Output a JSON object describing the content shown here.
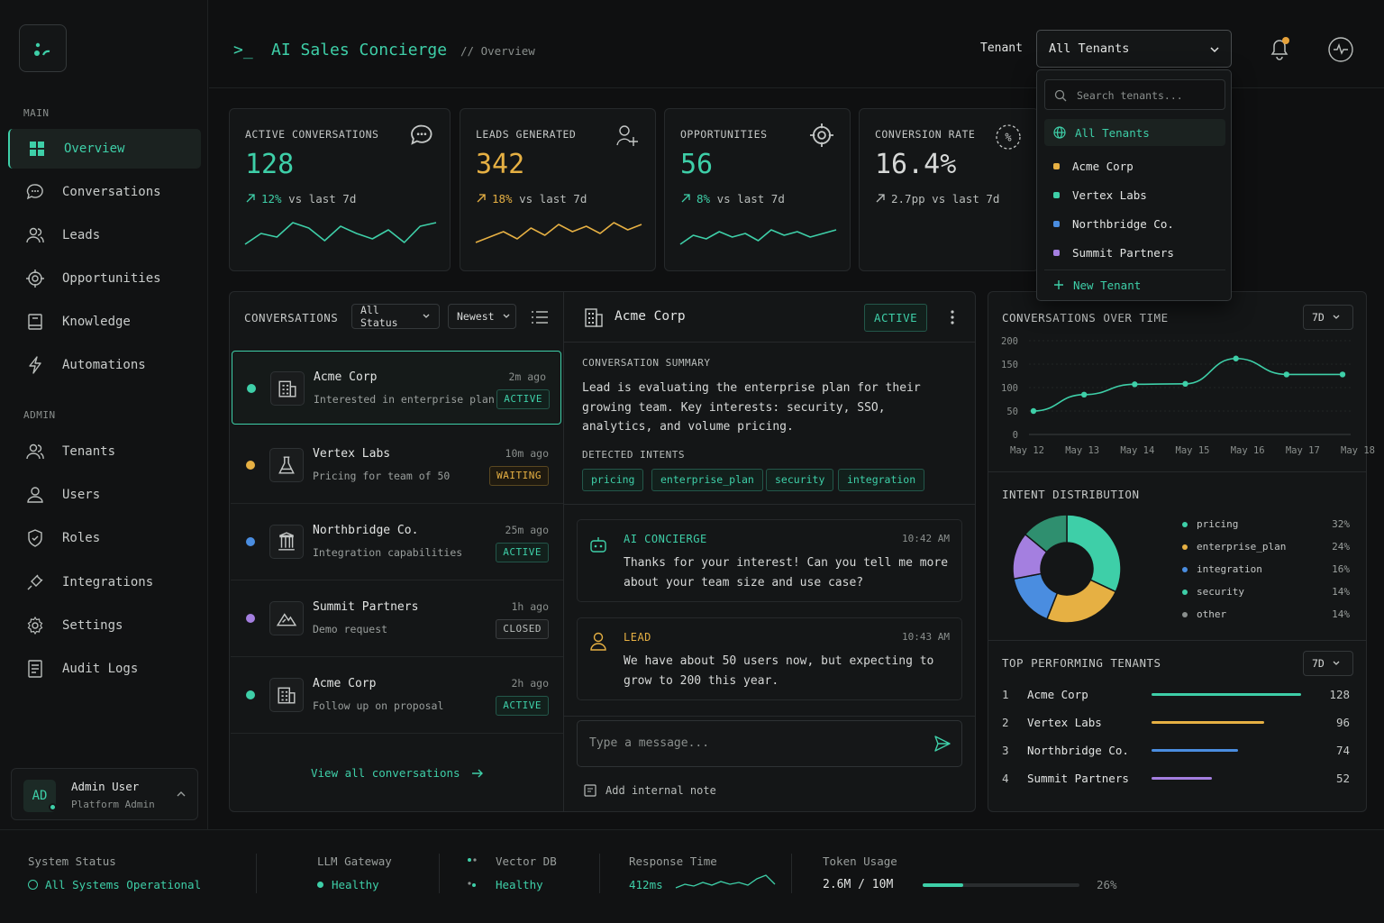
{
  "app": {
    "title": "AI Sales Concierge",
    "prompt": ">_",
    "breadcrumb": "// Overview"
  },
  "sidebar": {
    "main_label": "MAIN",
    "admin_label": "ADMIN",
    "main_items": [
      {
        "label": "Overview",
        "icon": "grid-icon",
        "active": true
      },
      {
        "label": "Conversations",
        "icon": "chat-icon"
      },
      {
        "label": "Leads",
        "icon": "users-icon"
      },
      {
        "label": "Opportunities",
        "icon": "target-icon"
      },
      {
        "label": "Knowledge",
        "icon": "book-icon"
      },
      {
        "label": "Automations",
        "icon": "bolt-icon"
      }
    ],
    "admin_items": [
      {
        "label": "Tenants",
        "icon": "users-icon"
      },
      {
        "label": "Users",
        "icon": "user-icon"
      },
      {
        "label": "Roles",
        "icon": "shield-icon"
      },
      {
        "label": "Integrations",
        "icon": "plug-icon"
      },
      {
        "label": "Settings",
        "icon": "gear-icon"
      },
      {
        "label": "Audit Logs",
        "icon": "document-icon"
      }
    ],
    "user": {
      "initials": "AD",
      "name": "Admin User",
      "role": "Platform Admin"
    }
  },
  "header": {
    "tenant_label": "Tenant",
    "tenant_selected": "All Tenants",
    "tenant_menu": {
      "search_placeholder": "Search tenants...",
      "items": [
        {
          "label": "All Tenants",
          "color": "#3ecfa8",
          "selected": true
        },
        {
          "label": "Acme Corp",
          "color": "#e6b043"
        },
        {
          "label": "Vertex Labs",
          "color": "#3ecfa8"
        },
        {
          "label": "Northbridge Co.",
          "color": "#4a8de0"
        },
        {
          "label": "Summit Partners",
          "color": "#a47fe0"
        }
      ],
      "new_label": "New Tenant"
    }
  },
  "kpis": [
    {
      "title": "ACTIVE CONVERSATIONS",
      "value": "128",
      "delta": "12%",
      "delta_suffix": " vs last 7d",
      "color": "#3ecfa8"
    },
    {
      "title": "LEADS GENERATED",
      "value": "342",
      "delta": "18%",
      "delta_suffix": " vs last 7d",
      "color": "#e6b043"
    },
    {
      "title": "OPPORTUNITIES",
      "value": "56",
      "delta": "8%",
      "delta_suffix": " vs last 7d",
      "color": "#3ecfa8"
    },
    {
      "title": "CONVERSION RATE",
      "value": "16.4%",
      "delta": "2.7pp",
      "delta_suffix": " vs last 7d",
      "color": "#d6d8d7"
    }
  ],
  "conversations": {
    "title": "CONVERSATIONS",
    "filter_status": "All Status",
    "filter_sort": "Newest",
    "items": [
      {
        "name": "Acme Corp",
        "sub": "Interested in enterprise plan",
        "time": "2m ago",
        "status": "ACTIVE",
        "dot": "#3ecfa8",
        "icon": "building-icon"
      },
      {
        "name": "Vertex Labs",
        "sub": "Pricing for team of 50",
        "time": "10m ago",
        "status": "WAITING",
        "dot": "#e6b043",
        "icon": "flask-icon"
      },
      {
        "name": "Northbridge Co.",
        "sub": "Integration capabilities",
        "time": "25m ago",
        "status": "ACTIVE",
        "dot": "#4a8de0",
        "icon": "columns-icon"
      },
      {
        "name": "Summit Partners",
        "sub": "Demo request",
        "time": "1h ago",
        "status": "CLOSED",
        "dot": "#a47fe0",
        "icon": "mountain-icon"
      },
      {
        "name": "Acme Corp",
        "sub": "Follow up on proposal",
        "time": "2h ago",
        "status": "ACTIVE",
        "dot": "#3ecfa8",
        "icon": "building-icon"
      }
    ],
    "view_all": "View all conversations"
  },
  "detail": {
    "company": "Acme Corp",
    "status": "ACTIVE",
    "summary_label": "CONVERSATION SUMMARY",
    "summary_lines": [
      "Lead is evaluating the enterprise plan for their",
      "growing team. Key interests: security, SSO,",
      "analytics, and volume pricing."
    ],
    "intents_label": "DETECTED INTENTS",
    "intents": [
      "pricing",
      "enterprise_plan",
      "security",
      "integration"
    ],
    "messages": [
      {
        "author": "AI CONCIERGE",
        "time": "10:42 AM",
        "lines": [
          "Thanks for your interest! Can you tell me more",
          "about your team size and use case?"
        ]
      },
      {
        "author": "LEAD",
        "time": "10:43 AM",
        "lines": [
          "We have about 50 users now, but expecting to",
          "grow to 200 this year."
        ]
      }
    ],
    "input_placeholder": "Type a message...",
    "note_label": "Add internal note"
  },
  "over_time": {
    "title": "CONVERSATIONS OVER TIME",
    "range": "7D"
  },
  "chart_data": [
    {
      "type": "line",
      "title": "CONVERSATIONS OVER TIME",
      "x": [
        "May 12",
        "May 13",
        "May 14",
        "May 15",
        "May 16",
        "May 17",
        "May 18"
      ],
      "series": [
        {
          "values": [
            50,
            85,
            107,
            108,
            162,
            128,
            128
          ]
        }
      ],
      "yticks": [
        0,
        50,
        100,
        150,
        200
      ],
      "ylim": [
        0,
        200
      ],
      "grid": true,
      "color": "#3ecfa8"
    },
    {
      "type": "pie",
      "title": "INTENT DISTRIBUTION",
      "categories": [
        "pricing",
        "enterprise_plan",
        "integration",
        "security",
        "other"
      ],
      "values": [
        32,
        24,
        16,
        14,
        14
      ],
      "labels": [
        "32%",
        "24%",
        "16%",
        "14%",
        "14%"
      ],
      "colors": [
        "#3ecfa8",
        "#e6b043",
        "#4a8de0",
        "#2f8f6f",
        "#a47fe0"
      ],
      "legend_colors": [
        "#3ecfa8",
        "#e6b043",
        "#4a8de0",
        "#3ecfa8",
        "#8a8f8d"
      ]
    },
    {
      "type": "bar",
      "title": "TOP PERFORMING TENANTS",
      "categories": [
        "Acme Corp",
        "Vertex Labs",
        "Northbridge Co.",
        "Summit Partners"
      ],
      "values": [
        128,
        96,
        74,
        52
      ],
      "ranks": [
        "1",
        "2",
        "3",
        "4"
      ],
      "value_labels": [
        "128",
        "96",
        "74",
        "52"
      ],
      "colors": [
        "#3ecfa8",
        "#e6b043",
        "#4a8de0",
        "#a47fe0"
      ],
      "range": "7D"
    }
  ],
  "footer": {
    "system_label": "System Status",
    "system_value": "All Systems Operational",
    "llm_label": "LLM Gateway",
    "llm_value": "Healthy",
    "vector_label": "Vector DB",
    "vector_value": "Healthy",
    "response_label": "Response Time",
    "response_value": "412ms",
    "token_label": "Token Usage",
    "token_value": "2.6M / 10M",
    "token_pct": "26%",
    "token_fraction": 0.26
  }
}
